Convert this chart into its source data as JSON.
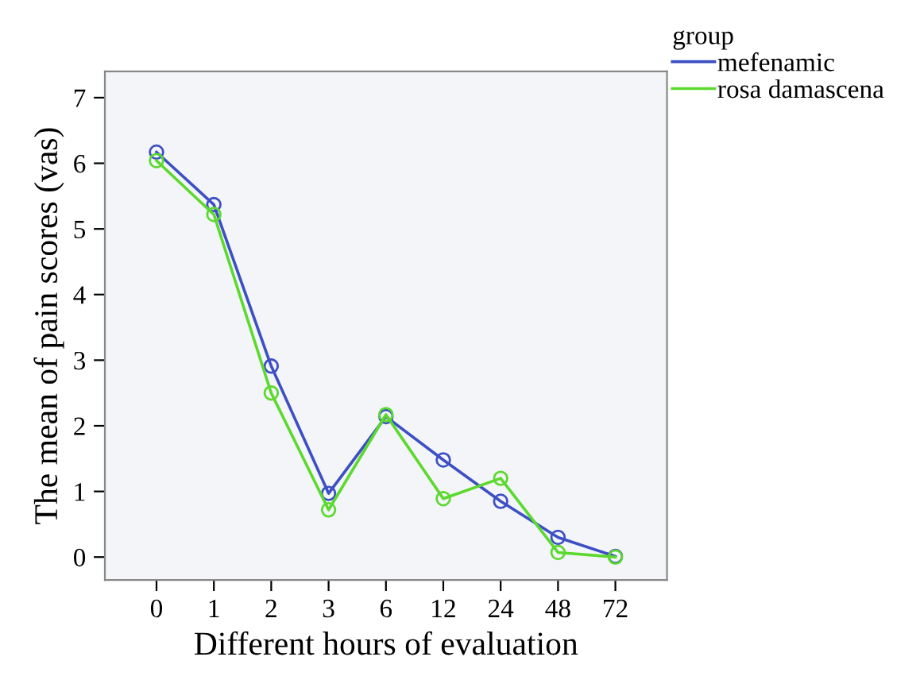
{
  "chart_data": {
    "type": "line",
    "xlabel": "Different hours of evaluation",
    "ylabel": "The mean of pain scores (vas)",
    "legend_title": "group",
    "categories": [
      "0",
      "1",
      "2",
      "3",
      "6",
      "12",
      "24",
      "48",
      "72"
    ],
    "series": [
      {
        "name": "mefenamic",
        "color": "#3d4fc4",
        "values": [
          6.17,
          5.37,
          2.91,
          0.97,
          2.14,
          1.48,
          0.85,
          0.3,
          0.01
        ]
      },
      {
        "name": "rosa damascena",
        "color": "#5cd92e",
        "values": [
          6.04,
          5.22,
          2.5,
          0.72,
          2.17,
          0.89,
          1.2,
          0.07,
          0.0
        ]
      }
    ],
    "ylim": [
      -0.35,
      7.4
    ],
    "yticks": [
      0,
      1,
      2,
      3,
      4,
      5,
      6,
      7
    ],
    "grid": false,
    "legend": "top right",
    "marker": "circle",
    "line_style": "solid"
  }
}
